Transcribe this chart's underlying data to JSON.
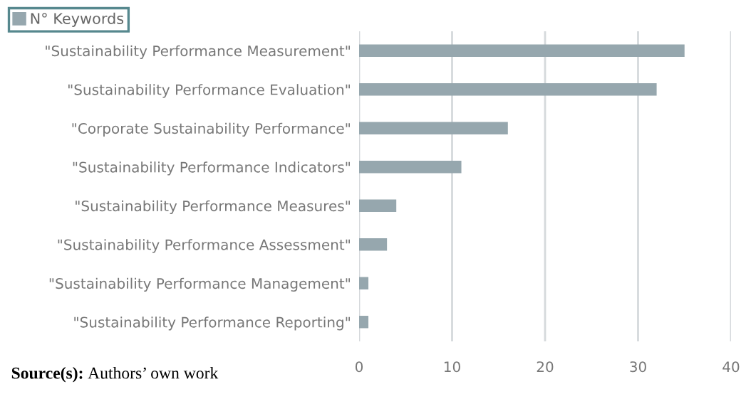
{
  "chart_data": {
    "type": "bar",
    "orientation": "horizontal",
    "categories": [
      "\"Sustainability Performance Measurement\"",
      "\"Sustainability Performance Evaluation\"",
      "\"Corporate Sustainability Performance\"",
      "\"Sustainability Performance Indicators\"",
      "\"Sustainability Performance Measures\"",
      "\"Sustainability Performance Assessment\"",
      "\"Sustainability Performance Management\"",
      "\"Sustainability Performance Reporting\""
    ],
    "series": [
      {
        "name": "N° Keywords",
        "color": "#96a7ae",
        "values": [
          35,
          32,
          16,
          11,
          4,
          3,
          1,
          1
        ]
      }
    ],
    "xlim": [
      0,
      40
    ],
    "xticks": [
      0,
      10,
      20,
      30,
      40
    ],
    "grid": "x",
    "legend": "top left",
    "annotations": [
      "Source(s): Authors’ own work"
    ]
  }
}
